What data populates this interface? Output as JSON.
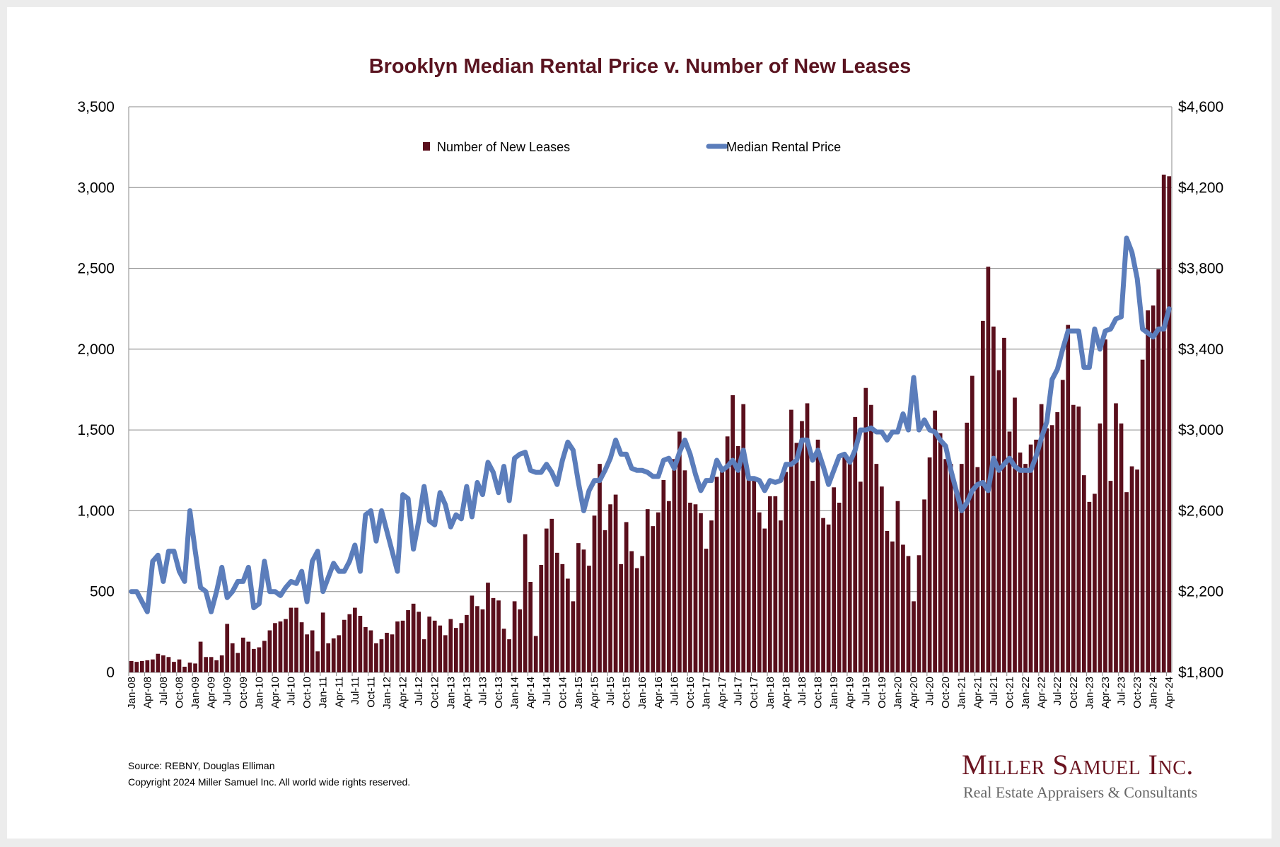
{
  "chart_data": {
    "type": "bar+line",
    "title": "Brooklyn Median Rental Price v. Number of New Leases",
    "legend": {
      "placement": "top-center",
      "entries": [
        "Number of New Leases",
        "Median Rental Price"
      ]
    },
    "colors": {
      "bars": "#5a0f1c",
      "line": "#5b7dbb",
      "title": "#5a1420"
    },
    "y_left": {
      "label": "",
      "range": [
        0,
        3500
      ],
      "ticks": [
        "0",
        "500",
        "1,000",
        "1,500",
        "2,000",
        "2,500",
        "3,000",
        "3,500"
      ]
    },
    "y_right": {
      "label": "",
      "range": [
        1800,
        4600
      ],
      "ticks": [
        "$1,800",
        "$2,200",
        "$2,600",
        "$3,000",
        "$3,400",
        "$3,800",
        "$4,200",
        "$4,600"
      ]
    },
    "grid": true,
    "start": "Jan-08",
    "end": "Apr-24",
    "series": [
      {
        "name": "Number of New Leases",
        "type": "bar",
        "axis": "left",
        "values": [
          70,
          65,
          70,
          75,
          80,
          115,
          105,
          95,
          65,
          80,
          35,
          60,
          55,
          190,
          95,
          95,
          75,
          105,
          300,
          180,
          120,
          215,
          190,
          145,
          155,
          195,
          260,
          305,
          315,
          330,
          400,
          400,
          310,
          235,
          260,
          130,
          370,
          180,
          210,
          230,
          325,
          360,
          400,
          350,
          280,
          260,
          180,
          205,
          245,
          235,
          315,
          320,
          385,
          425,
          375,
          205,
          345,
          320,
          290,
          230,
          330,
          275,
          305,
          355,
          475,
          410,
          390,
          555,
          460,
          445,
          270,
          205,
          440,
          390,
          855,
          560,
          225,
          665,
          890,
          950,
          740,
          670,
          580,
          440,
          800,
          760,
          660,
          970,
          1290,
          880,
          1040,
          1100,
          670,
          930,
          750,
          645,
          720,
          1010,
          905,
          990,
          1190,
          1060,
          1320,
          1490,
          1250,
          1050,
          1040,
          985,
          765,
          940,
          1210,
          1250,
          1460,
          1715,
          1400,
          1660,
          1195,
          1195,
          990,
          890,
          1090,
          1090,
          940,
          1240,
          1625,
          1420,
          1555,
          1665,
          1185,
          1440,
          955,
          915,
          1145,
          1050,
          1330,
          1320,
          1580,
          1180,
          1760,
          1655,
          1290,
          1150,
          875,
          810,
          1060,
          790,
          720,
          440,
          725,
          1070,
          1330,
          1620,
          1480,
          1320,
          1290,
          1120,
          1290,
          1545,
          1835,
          1270,
          2175,
          2510,
          2140,
          1870,
          2070,
          1490,
          1700,
          1360,
          1290,
          1410,
          1440,
          1660,
          1510,
          1530,
          1610,
          1810,
          2150,
          1655,
          1645,
          1220,
          1055,
          1105,
          1540,
          2060,
          1185,
          1665,
          1540,
          1115,
          1275,
          1255,
          1935,
          2240,
          2270,
          2495,
          3080,
          3070
        ]
      },
      {
        "name": "Median Rental Price",
        "type": "line",
        "axis": "right",
        "values": [
          2200,
          2200,
          2150,
          2100,
          2350,
          2380,
          2250,
          2400,
          2400,
          2300,
          2250,
          2600,
          2400,
          2220,
          2200,
          2100,
          2200,
          2320,
          2170,
          2200,
          2250,
          2250,
          2320,
          2120,
          2140,
          2350,
          2200,
          2200,
          2180,
          2220,
          2250,
          2240,
          2300,
          2150,
          2350,
          2400,
          2200,
          2270,
          2340,
          2300,
          2300,
          2350,
          2430,
          2300,
          2580,
          2600,
          2450,
          2600,
          2500,
          2400,
          2300,
          2680,
          2660,
          2410,
          2550,
          2720,
          2550,
          2530,
          2690,
          2630,
          2520,
          2580,
          2560,
          2720,
          2570,
          2740,
          2680,
          2840,
          2790,
          2690,
          2820,
          2650,
          2860,
          2880,
          2890,
          2800,
          2790,
          2790,
          2830,
          2790,
          2730,
          2850,
          2940,
          2900,
          2740,
          2600,
          2700,
          2750,
          2750,
          2800,
          2860,
          2950,
          2880,
          2880,
          2810,
          2800,
          2800,
          2790,
          2770,
          2770,
          2850,
          2860,
          2810,
          2890,
          2950,
          2880,
          2780,
          2700,
          2750,
          2750,
          2850,
          2800,
          2820,
          2850,
          2800,
          2900,
          2760,
          2760,
          2750,
          2700,
          2750,
          2740,
          2750,
          2830,
          2830,
          2850,
          2950,
          2950,
          2850,
          2900,
          2820,
          2730,
          2800,
          2870,
          2880,
          2840,
          2900,
          3000,
          3000,
          3010,
          2990,
          2990,
          2950,
          2990,
          2990,
          3080,
          3000,
          3260,
          3000,
          3050,
          3000,
          2990,
          2950,
          2920,
          2800,
          2700,
          2600,
          2640,
          2700,
          2730,
          2740,
          2700,
          2860,
          2800,
          2830,
          2860,
          2820,
          2800,
          2800,
          2800,
          2870,
          2960,
          3040,
          3250,
          3300,
          3400,
          3490,
          3490,
          3490,
          3310,
          3310,
          3500,
          3400,
          3490,
          3500,
          3550,
          3560,
          3950,
          3880,
          3750,
          3500,
          3480,
          3460,
          3500,
          3500,
          3600
        ]
      }
    ],
    "x_tick_labels": [
      "Jan-08",
      "Apr-08",
      "Jul-08",
      "Oct-08",
      "Jan-09",
      "Apr-09",
      "Jul-09",
      "Oct-09",
      "Jan-10",
      "Apr-10",
      "Jul-10",
      "Oct-10",
      "Jan-11",
      "Apr-11",
      "Jul-11",
      "Oct-11",
      "Jan-12",
      "Apr-12",
      "Jul-12",
      "Oct-12",
      "Jan-13",
      "Apr-13",
      "Jul-13",
      "Oct-13",
      "Jan-14",
      "Apr-14",
      "Jul-14",
      "Oct-14",
      "Jan-15",
      "Apr-15",
      "Jul-15",
      "Oct-15",
      "Jan-16",
      "Apr-16",
      "Jul-16",
      "Oct-16",
      "Jan-17",
      "Apr-17",
      "Jul-17",
      "Oct-17",
      "Jan-18",
      "Apr-18",
      "Jul-18",
      "Oct-18",
      "Jan-19",
      "Apr-19",
      "Jul-19",
      "Oct-19",
      "Jan-20",
      "Apr-20",
      "Jul-20",
      "Oct-20",
      "Jan-21",
      "Apr-21",
      "Jul-21",
      "Oct-21",
      "Jan-22",
      "Apr-22",
      "Jul-22",
      "Oct-22",
      "Jan-23",
      "Apr-23",
      "Jul-23",
      "Oct-23",
      "Jan-24",
      "Apr-24"
    ]
  },
  "footer": {
    "source": "Source: REBNY, Douglas Elliman",
    "copyright": "Copyright 2024 Miller Samuel Inc.  All world wide rights reserved."
  },
  "logo": {
    "name": "Miller Samuel Inc.",
    "tagline": "Real Estate Appraisers & Consultants"
  }
}
